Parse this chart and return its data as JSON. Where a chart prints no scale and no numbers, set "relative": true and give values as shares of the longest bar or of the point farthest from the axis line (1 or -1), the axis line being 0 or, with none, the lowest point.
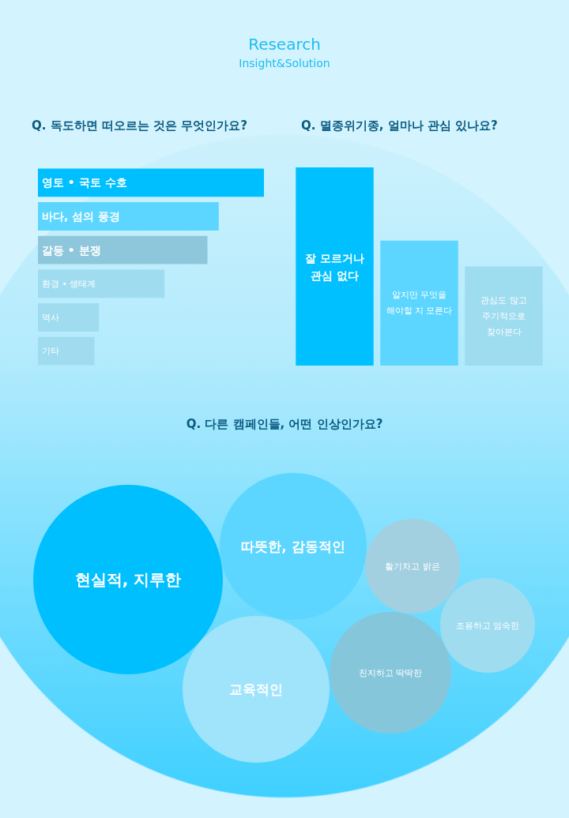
{
  "chart_data": [
    {
      "type": "bar",
      "orientation": "horizontal",
      "relative": true,
      "title": "Q. 독도하면 떠오르는 것은 무엇인가요?",
      "annotations": [
        "Research",
        "Insight&Solution"
      ],
      "categories": [
        "영토 • 국토 수호",
        "바다, 섬의 풍경",
        "갈등 • 분쟁",
        "환경 • 생태계",
        "역사",
        "기타"
      ],
      "values": [
        1,
        0.8,
        0.75,
        0.56,
        0.27,
        0.25
      ],
      "colors": [
        "#00bfff",
        "#5cd6ff",
        "#8ec7dc",
        "#9fdcf0",
        "#9fdcf0",
        "#9fdcf0"
      ]
    },
    {
      "type": "bar",
      "relative": true,
      "title": "Q. 멸종위기종, 얼마나 관심 있나요?",
      "categories": [
        "잘 모르거나\n관심 없다",
        "알지만 무엇을\n해야할 지 모른다",
        "관심도 많고\n주기적으로\n찾아본다"
      ],
      "values": [
        1,
        0.63,
        0.5
      ],
      "colors": [
        "#00c0ff",
        "#5dd6ff",
        "#9edcf0"
      ]
    },
    {
      "type": "other",
      "title": "Q. 다른 캠페인들, 어떤 인상인가요?",
      "categories": [
        "현실적, 지루한",
        "따뜻한, 감동적인",
        "교육적인",
        "활기차고 밝은",
        "조용하고 엄숙한",
        "진지하고 딱딱한"
      ],
      "colors": [
        "#00bfff",
        "#5cd6ff",
        "#9fe4fb",
        "#a2d0e0",
        "#9fdcf0",
        "#86c6db"
      ]
    }
  ]
}
